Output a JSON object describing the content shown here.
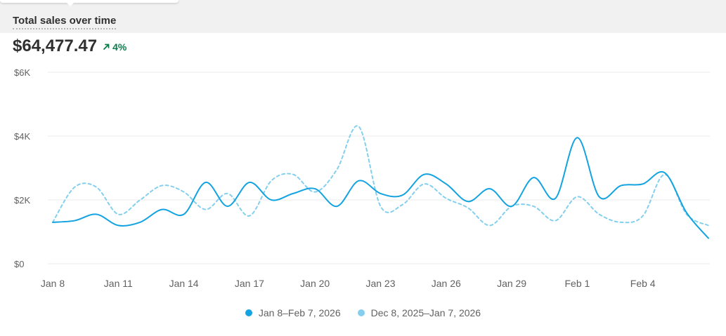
{
  "card": {
    "title": "Total sales over time",
    "total": "$64,477.47",
    "change": "4%",
    "change_icon": "arrow-up-right-icon",
    "change_color": "#0c7d4a"
  },
  "chart_data": {
    "type": "line",
    "x": [
      "Jan 8",
      "Jan 9",
      "Jan 10",
      "Jan 11",
      "Jan 12",
      "Jan 13",
      "Jan 14",
      "Jan 15",
      "Jan 16",
      "Jan 17",
      "Jan 18",
      "Jan 19",
      "Jan 20",
      "Jan 21",
      "Jan 22",
      "Jan 23",
      "Jan 24",
      "Jan 25",
      "Jan 26",
      "Jan 27",
      "Jan 28",
      "Jan 29",
      "Jan 30",
      "Jan 31",
      "Feb 1",
      "Feb 2",
      "Feb 3",
      "Feb 4",
      "Feb 5",
      "Feb 6",
      "Feb 7"
    ],
    "x_tick_labels": [
      "Jan 8",
      "Jan 11",
      "Jan 14",
      "Jan 17",
      "Jan 20",
      "Jan 23",
      "Jan 26",
      "Jan 29",
      "Feb 1",
      "Feb 4"
    ],
    "y_tick_labels": [
      "$0",
      "$2K",
      "$4K",
      "$6K"
    ],
    "ylim": [
      0,
      6000
    ],
    "grid": true,
    "legend_position": "bottom-center",
    "series": [
      {
        "name": "Jan 8–Feb 7, 2026",
        "color": "#13a3e0",
        "style": "solid",
        "values": [
          1300,
          1350,
          1550,
          1200,
          1300,
          1700,
          1550,
          2550,
          1800,
          2550,
          2000,
          2200,
          2350,
          1800,
          2600,
          2200,
          2150,
          2800,
          2500,
          1950,
          2350,
          1800,
          2700,
          2050,
          3950,
          2100,
          2450,
          2500,
          2850,
          1600,
          800
        ]
      },
      {
        "name": "Dec 8, 2025–Jan 7, 2026",
        "color": "#84cfee",
        "style": "dashed",
        "values": [
          1300,
          2400,
          2400,
          1550,
          2000,
          2450,
          2250,
          1700,
          2200,
          1500,
          2600,
          2800,
          2250,
          2950,
          4300,
          1800,
          1850,
          2500,
          2050,
          1750,
          1200,
          1800,
          1800,
          1350,
          2100,
          1550,
          1300,
          1500,
          2800,
          1550,
          1200
        ]
      }
    ]
  }
}
